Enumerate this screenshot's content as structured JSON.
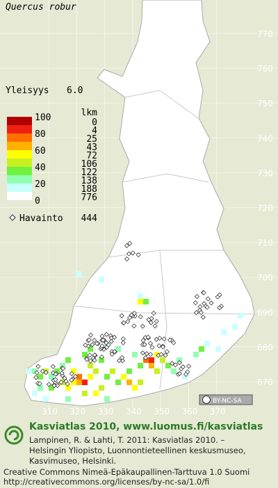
{
  "header": {
    "title": "Quercus robur",
    "frequency_label": "Yleisyys",
    "frequency_value": "6.0"
  },
  "legend": {
    "scale_labels": [
      100,
      80,
      60,
      40,
      20,
      0
    ],
    "count_header": "lkm",
    "bands": [
      {
        "color": "#b00000",
        "count": 0
      },
      {
        "color": "#f02010",
        "count": 4
      },
      {
        "color": "#ff7000",
        "count": 25
      },
      {
        "color": "#ffb000",
        "count": 43
      },
      {
        "color": "#ffff00",
        "count": 72
      },
      {
        "color": "#c8f020",
        "count": 106
      },
      {
        "color": "#70f040",
        "count": 122
      },
      {
        "color": "#90ffb0",
        "count": 138
      },
      {
        "color": "#c8ffff",
        "count": 188
      },
      {
        "color": "#ffffff",
        "count": 776
      }
    ],
    "observation_label": "Havainto",
    "observation_count": 444
  },
  "map": {
    "yticks": [
      770,
      760,
      750,
      740,
      730,
      720,
      710,
      700,
      690,
      680,
      670
    ],
    "xticks": [
      310,
      320,
      330,
      340,
      350,
      360,
      370
    ],
    "badge": "BY-NC-SA"
  },
  "footer": {
    "site": "Kasviatlas 2010, www.luomus.fi/kasviatlas",
    "citation": [
      "Lampinen, R. & Lahti, T. 2011: Kasviatlas 2010. –",
      "Helsingin Yliopisto, Luonnontieteellinen keskusmuseo,",
      "Kasvimuseo, Helsinki."
    ],
    "license": [
      "Creative Commons Nimeä-Epäkaupallinen-Tarttuva 1.0 Suomi",
      "http://creativecommons.org/licenses/by-nc-sa/1.0/fi"
    ]
  }
}
